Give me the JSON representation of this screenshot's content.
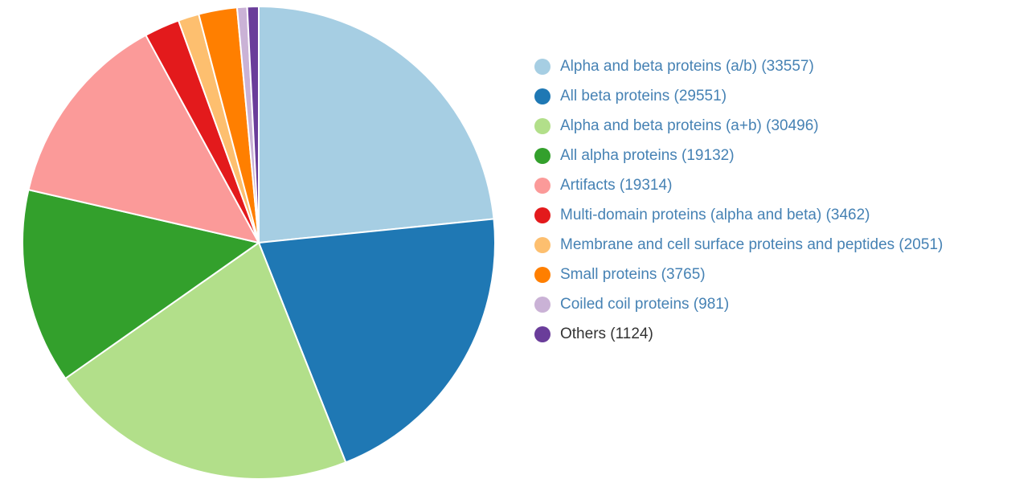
{
  "chart_data": {
    "type": "pie",
    "title": "",
    "legend_position": "right",
    "slices": [
      {
        "label": "Alpha and beta proteins (a/b) (33557)",
        "value": 33557,
        "color": "#a6cee3"
      },
      {
        "label": "All beta proteins (29551)",
        "value": 29551,
        "color": "#1f78b4"
      },
      {
        "label": "Alpha and beta proteins (a+b) (30496)",
        "value": 30496,
        "color": "#b2df8a"
      },
      {
        "label": "All alpha proteins (19132)",
        "value": 19132,
        "color": "#33a02c"
      },
      {
        "label": "Artifacts (19314)",
        "value": 19314,
        "color": "#fb9a99"
      },
      {
        "label": "Multi-domain proteins (alpha and beta) (3462)",
        "value": 3462,
        "color": "#e31a1c"
      },
      {
        "label": "Membrane and cell surface proteins and peptides (2051)",
        "value": 2051,
        "color": "#fdbf6f"
      },
      {
        "label": "Small proteins (3765)",
        "value": 3765,
        "color": "#ff7f00"
      },
      {
        "label": "Coiled coil proteins (981)",
        "value": 981,
        "color": "#cab2d6"
      },
      {
        "label": "Others (1124)",
        "value": 1124,
        "color": "#6a3d9a"
      }
    ]
  },
  "legend": {
    "text_color": "#4682b4",
    "last_item_text_color": "#333333"
  }
}
